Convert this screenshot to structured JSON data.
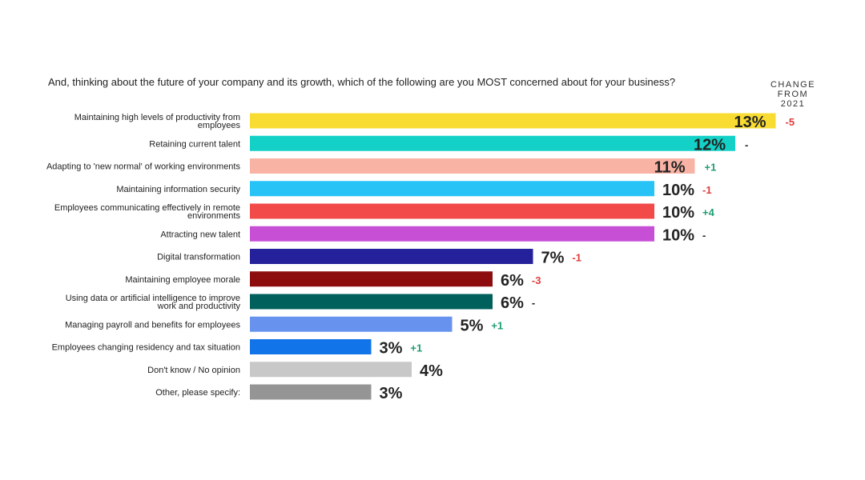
{
  "question": "And, thinking about the future of your company and its growth, which of the following are you MOST concerned about for your business?",
  "change_header": [
    "CHANGE",
    "FROM",
    "2021"
  ],
  "colors": {
    "change_negative": "#e03c3c",
    "change_positive": "#1f9d74",
    "change_neutral": "#222222"
  },
  "chart_data": {
    "type": "bar",
    "orientation": "horizontal",
    "value_suffix": "%",
    "categories": [
      [
        "Maintaining high levels of productivity from",
        "employees"
      ],
      [
        "Retaining current talent"
      ],
      [
        "Adapting to 'new normal' of working environments"
      ],
      [
        "Maintaining information security"
      ],
      [
        "Employees communicating effectively in remote",
        "environments"
      ],
      [
        "Attracting new talent"
      ],
      [
        "Digital transformation"
      ],
      [
        "Maintaining employee morale"
      ],
      [
        "Using data or artificial intelligence to improve",
        "work and productivity"
      ],
      [
        "Managing payroll and benefits for employees"
      ],
      [
        "Employees changing residency and tax situation"
      ],
      [
        "Don't know / No opinion"
      ],
      [
        "Other, please specify:"
      ]
    ],
    "values": [
      13,
      12,
      11,
      10,
      10,
      10,
      7,
      6,
      6,
      5,
      3,
      4,
      3
    ],
    "value_labels": [
      "13%",
      "12%",
      "11%",
      "10%",
      "10%",
      "10%",
      "7%",
      "6%",
      "6%",
      "5%",
      "3%",
      "4%",
      "3%"
    ],
    "change_from_2021": [
      "-5",
      "-",
      "+1",
      "-1",
      "+4",
      "-",
      "-1",
      "-3",
      "-",
      "+1",
      "+1",
      "",
      ""
    ],
    "colors": [
      "#f9dc32",
      "#13d1c6",
      "#f8b3a4",
      "#27c3f7",
      "#f24a48",
      "#c64fd6",
      "#24219a",
      "#8d0d0f",
      "#00605c",
      "#6793ef",
      "#1274e9",
      "#c8c8c8",
      "#959595"
    ],
    "xlim": [
      0,
      13
    ]
  }
}
